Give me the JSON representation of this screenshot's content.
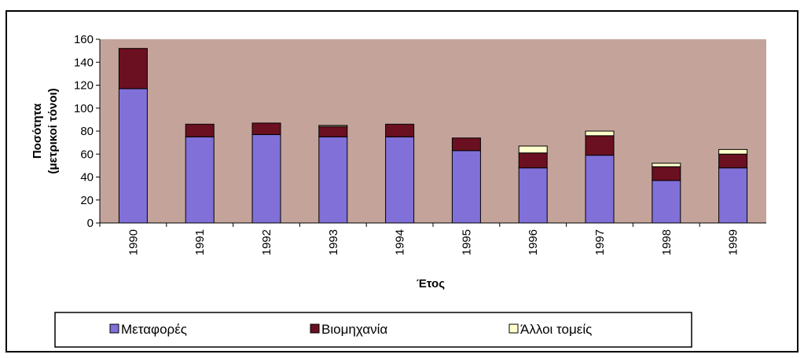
{
  "chart_data": {
    "type": "stacked_bar",
    "ylabel": [
      "Ποσότητα",
      "(μετρικοί τόνοι)"
    ],
    "xlabel": "Έτος",
    "categories": [
      "1990",
      "1991",
      "1992",
      "1993",
      "1994",
      "1995",
      "1996",
      "1997",
      "1998",
      "1999"
    ],
    "series": [
      {
        "name": "Μεταφορές",
        "color": "#8070d8",
        "values": [
          117,
          75,
          77,
          75,
          75,
          63,
          48,
          59,
          37,
          48
        ]
      },
      {
        "name": "Βιομηχανία",
        "color": "#6b1020",
        "values": [
          35,
          11,
          10,
          9,
          11,
          11,
          13,
          17,
          12,
          12
        ]
      },
      {
        "name": "Άλλοι τομείς",
        "color": "#ffffcc",
        "values": [
          0,
          0,
          0,
          1,
          0,
          0,
          6,
          4,
          3,
          4
        ]
      }
    ],
    "ylim": [
      0,
      160
    ],
    "yticks": [
      0,
      20,
      40,
      60,
      80,
      100,
      120,
      140,
      160
    ],
    "plot_background": "#c4a49a"
  }
}
